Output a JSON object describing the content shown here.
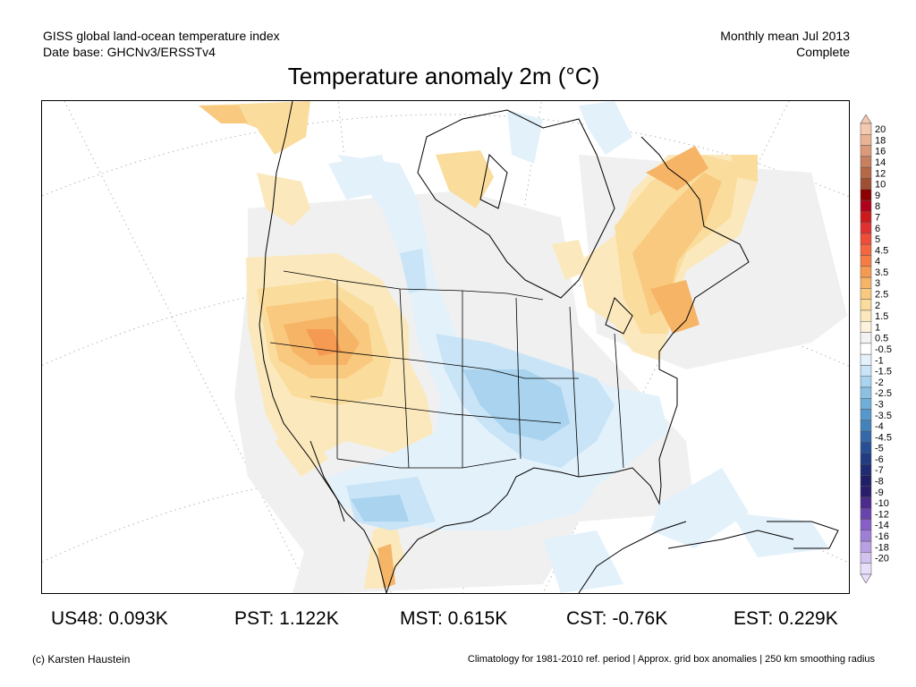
{
  "header": {
    "dataset_title": "GISS global land-ocean temperature index",
    "date_base": "Date base: GHCNv3/ERSSTv4",
    "period": "Monthly mean Jul 2013",
    "status": "Complete"
  },
  "title": "Temperature anomaly 2m (°C)",
  "colorbar": {
    "labels": [
      "20",
      "18",
      "16",
      "14",
      "12",
      "10",
      "9",
      "8",
      "7",
      "6",
      "5",
      "4.5",
      "4",
      "3.5",
      "3",
      "2.5",
      "2",
      "1.5",
      "1",
      "0.5",
      "-0.5",
      "-1",
      "-1.5",
      "-2",
      "-2.5",
      "-3",
      "-3.5",
      "-4",
      "-4.5",
      "-5",
      "-6",
      "-7",
      "-8",
      "-9",
      "-10",
      "-12",
      "-14",
      "-16",
      "-18",
      "-20"
    ],
    "colors": [
      "#f5c8b0",
      "#eab395",
      "#dc9a7a",
      "#c9805f",
      "#b66848",
      "#a04f33",
      "#8c0000",
      "#b0001a",
      "#cc1a1a",
      "#e03030",
      "#ee4d3a",
      "#f4663f",
      "#f57d44",
      "#f59a52",
      "#f6b466",
      "#f8c97f",
      "#fadc9c",
      "#fbe9bd",
      "#fdf3dc",
      "#f2f2f2",
      "#ffffff",
      "#e3f1fb",
      "#c8e4f6",
      "#a9d3ee",
      "#8dc1e4",
      "#6fafd9",
      "#5598cb",
      "#4382bb",
      "#3568a8",
      "#284f94",
      "#213c83",
      "#1f2c73",
      "#1f1e67",
      "#2a1d6c",
      "#4b2b8c",
      "#6a44ad",
      "#8660c6",
      "#9e7fd6",
      "#b8a0e3",
      "#d2c2f0",
      "#e8defa"
    ]
  },
  "stats": {
    "us48": "US48: 0.093K",
    "pst": "PST: 1.122K",
    "mst": "MST: 0.615K",
    "cst": "CST: -0.76K",
    "est": "EST: 0.229K"
  },
  "footer": {
    "credit": "(c) Karsten Haustein",
    "note": "Climatology for 1981-2010 ref. period | Approx. grid box anomalies | 250 km smoothing radius"
  }
}
